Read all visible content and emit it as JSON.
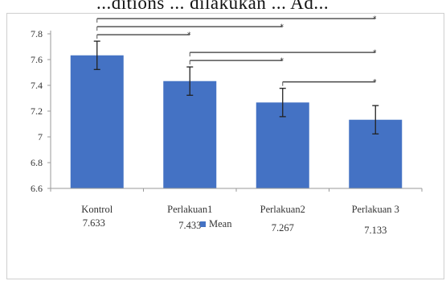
{
  "page": {
    "top_text": "...ditions ... dilakukan ... Ad..."
  },
  "chart_data": {
    "type": "bar",
    "title": "",
    "xlabel": "",
    "ylabel": "",
    "ylim": [
      6.6,
      7.8
    ],
    "yticks": [
      6.6,
      6.8,
      7,
      7.2,
      7.4,
      7.6,
      7.8
    ],
    "grid": false,
    "categories": [
      "Kontrol",
      "Perlakuan1",
      "Perlakuan2",
      "Perlakuan 3"
    ],
    "series": [
      {
        "name": "Mean",
        "values": [
          7.633,
          7.433,
          7.267,
          7.133
        ],
        "value_labels": [
          "7.633",
          "7.433",
          "7.267",
          "7.133"
        ],
        "error": [
          0.11,
          0.11,
          0.11,
          0.11
        ],
        "color": "#4472C4"
      }
    ],
    "legend": {
      "position": "bottom",
      "entries": [
        "Mean"
      ]
    },
    "significance": [
      {
        "from": 0,
        "to": 1,
        "label": "*"
      },
      {
        "from": 0,
        "to": 2,
        "label": "*"
      },
      {
        "from": 0,
        "to": 3,
        "label": "*"
      },
      {
        "from": 1,
        "to": 2,
        "label": "*"
      },
      {
        "from": 1,
        "to": 3,
        "label": "*"
      },
      {
        "from": 2,
        "to": 3,
        "label": "*"
      }
    ]
  }
}
